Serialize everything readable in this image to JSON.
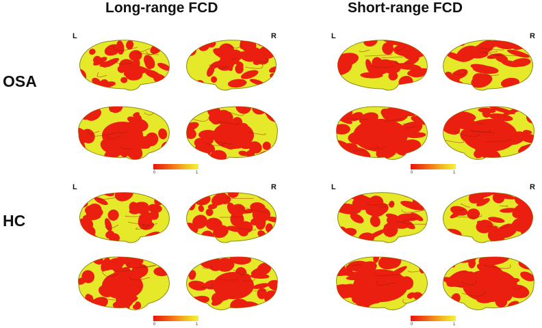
{
  "columns": [
    {
      "title": "Long-range FCD"
    },
    {
      "title": "Short-range FCD"
    }
  ],
  "rows": [
    {
      "label": "OSA"
    },
    {
      "label": "HC"
    }
  ],
  "hemisphere_labels": {
    "left": "L",
    "right": "R"
  },
  "colorbar": {
    "min": "0",
    "max": "1",
    "colors": [
      "#e8150e",
      "#f4861a",
      "#f4f23a"
    ]
  },
  "colors": {
    "surface": "#e6e82a",
    "activation": "#ea1f10",
    "outline": "#8a8a12"
  }
}
